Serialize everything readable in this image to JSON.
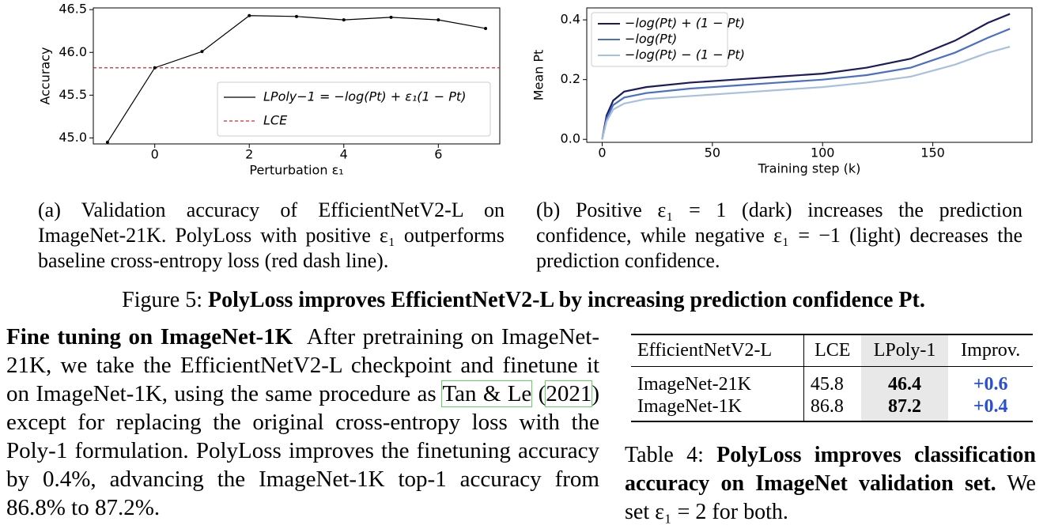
{
  "chart_data": [
    {
      "type": "line",
      "x": [
        -1,
        0,
        1,
        2,
        3,
        4,
        5,
        6,
        7
      ],
      "series": [
        {
          "name": "LPoly−1 = −log(Pt) + ε₁(1 − Pt)",
          "color": "#000000",
          "values": [
            44.95,
            45.82,
            46.01,
            46.43,
            46.42,
            46.38,
            46.41,
            46.38,
            46.28
          ]
        }
      ],
      "hline": {
        "name": "LCE",
        "value": 45.82,
        "color": "#d62728"
      },
      "xlim": [
        -1.3,
        7.3
      ],
      "xticks": [
        0,
        2,
        4,
        6
      ],
      "ylim": [
        44.93,
        46.52
      ],
      "yticks": [
        {
          "value": 45.0,
          "label": "45.0"
        },
        45.5,
        {
          "value": 46.0,
          "label": "46.0"
        },
        46.5
      ],
      "xlabel": "Perturbation ε₁",
      "ylabel": "Accuracy",
      "legend": "lower-right",
      "markers": true
    },
    {
      "type": "line",
      "x": [
        0,
        2,
        5,
        10,
        20,
        40,
        60,
        80,
        100,
        120,
        140,
        160,
        175,
        185
      ],
      "series": [
        {
          "name": "−log(Pt) + (1 − Pt)",
          "color": "#1b1b5e",
          "values": [
            0,
            0.08,
            0.13,
            0.16,
            0.175,
            0.19,
            0.2,
            0.21,
            0.22,
            0.24,
            0.27,
            0.33,
            0.39,
            0.42
          ]
        },
        {
          "name": "−log(Pt)",
          "color": "#4a6fc7",
          "values": [
            0,
            0.07,
            0.115,
            0.14,
            0.155,
            0.17,
            0.18,
            0.19,
            0.2,
            0.215,
            0.24,
            0.29,
            0.34,
            0.37
          ]
        },
        {
          "name": "−log(Pt) − (1 − Pt)",
          "color": "#a9bfde",
          "values": [
            0,
            0.06,
            0.1,
            0.12,
            0.135,
            0.145,
            0.155,
            0.165,
            0.175,
            0.19,
            0.21,
            0.25,
            0.29,
            0.31
          ]
        }
      ],
      "xlim": [
        -7,
        195
      ],
      "xticks": [
        0,
        50,
        100,
        150
      ],
      "ylim": [
        -0.01,
        0.44
      ],
      "yticks": [
        {
          "value": 0,
          "label": "0.0"
        },
        0.2,
        0.4
      ],
      "xlabel": "Training step (k)",
      "ylabel": "Mean Pt",
      "legend": "upper-left",
      "markers": false
    }
  ],
  "figure": {
    "caption_a": "(a) Validation accuracy of EfficientNetV2-L on ImageNet-21K. PolyLoss with positive ε₁ outperforms baseline cross-entropy loss (red dash line).",
    "caption_b": "(b) Positive ε₁ = 1 (dark) increases the prediction confidence, while negative ε₁ = −1 (light) decreases the prediction confidence.",
    "label": "Figure 5:",
    "caption": "PolyLoss improves EfficientNetV2-L by increasing prediction confidence Pt."
  },
  "paragraph": {
    "heading": "Fine tuning on ImageNet-1K",
    "text_1": "After pretraining on ImageNet-21K, we take the EfficientNetV2-L checkpoint and finetune it on ImageNet-1K, using the same procedure as",
    "ref_author": "Tan & Le",
    "ref_year": "2021",
    "text_2": "except for replacing the original cross-entropy loss with the Poly-1 formulation. PolyLoss improves the finetuning accuracy by 0.4%, advancing the ImageNet-1K top-1 accuracy from 86.8% to 87.2%."
  },
  "table": {
    "header": [
      "EfficientNetV2-L",
      "LCE",
      "LPoly-1",
      "Improv."
    ],
    "rows": [
      [
        "ImageNet-21K",
        "45.8",
        "46.4",
        "+0.6"
      ],
      [
        "ImageNet-1K",
        "86.8",
        "87.2",
        "+0.4"
      ]
    ],
    "label": "Table 4:",
    "caption_bold": "PolyLoss improves classification accuracy on ImageNet validation set.",
    "caption": "We set ε₁ = 2 for both."
  }
}
